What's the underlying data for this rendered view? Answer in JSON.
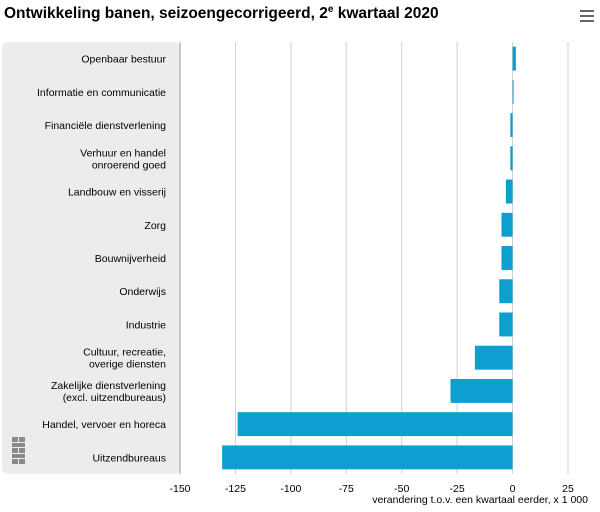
{
  "title": {
    "main": "Ontwikkeling banen, seizoengecorrigeerd, 2",
    "sup": "e",
    "tail": " kwartaal 2020"
  },
  "menu_icon": "hamburger-menu-icon",
  "logo": "CBS",
  "colors": {
    "bar": "#0d9fcf",
    "panel": "#ececec",
    "grid": "#d0d0d0",
    "axis": "#999999"
  },
  "chart_data": {
    "type": "bar",
    "orientation": "horizontal",
    "categories": [
      [
        "Openbaar bestuur"
      ],
      [
        "Informatie en communicatie"
      ],
      [
        "Financiële dienstverlening"
      ],
      [
        "Verhuur en handel",
        "onroerend goed"
      ],
      [
        "Landbouw en visserij"
      ],
      [
        "Zorg"
      ],
      [
        "Bouwnijverheid"
      ],
      [
        "Onderwijs"
      ],
      [
        "Industrie"
      ],
      [
        "Cultuur, recreatie,",
        "overige diensten"
      ],
      [
        "Zakelijke dienstverlening",
        "(excl. uitzendbureaus)"
      ],
      [
        "Handel, vervoer en horeca"
      ],
      [
        "Uitzendbureaus"
      ]
    ],
    "values": [
      1.5,
      0.3,
      -1,
      -1,
      -3,
      -5,
      -5,
      -6,
      -6,
      -17,
      -28,
      -124,
      -131
    ],
    "xlim": [
      -150,
      25
    ],
    "xticks": [
      -150,
      -125,
      -100,
      -75,
      -50,
      -25,
      0,
      25
    ],
    "xlabel": "verandering t.o.v. een kwartaal eerder, x 1 000",
    "grid": true
  }
}
